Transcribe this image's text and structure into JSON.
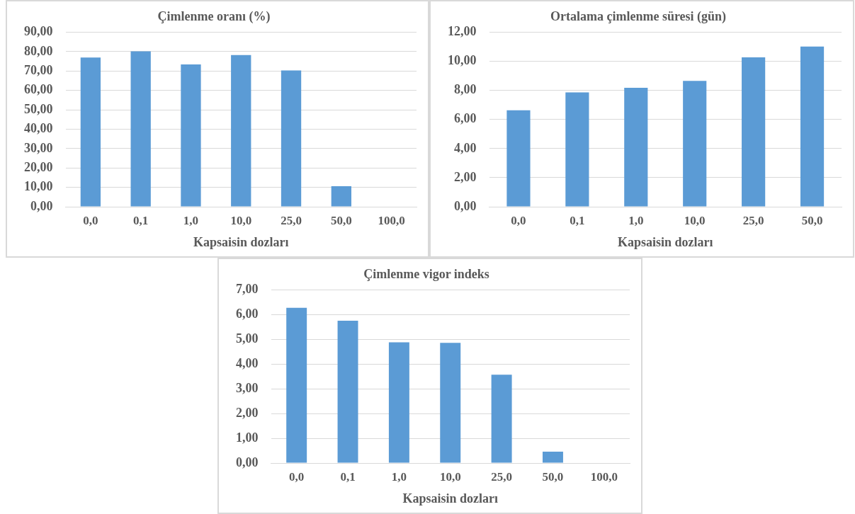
{
  "chart_data": [
    {
      "type": "bar",
      "title": "Çimlenme oranı (%)",
      "xlabel": "Kapsaisin dozları",
      "categories": [
        "0,0",
        "0,1",
        "1,0",
        "10,0",
        "25,0",
        "50,0",
        "100,0"
      ],
      "values": [
        77,
        80.2,
        73.4,
        78.3,
        70.3,
        10.6,
        0
      ],
      "color": "#5b9bd5",
      "ylim": [
        0,
        90
      ],
      "yticks": [
        {
          "value": 0,
          "label": "0,00"
        },
        {
          "value": 10,
          "label": "10,00"
        },
        {
          "value": 20,
          "label": "20,00"
        },
        {
          "value": 30,
          "label": "30,00"
        },
        {
          "value": 40,
          "label": "40,00"
        },
        {
          "value": 50,
          "label": "50,00"
        },
        {
          "value": 60,
          "label": "60,00"
        },
        {
          "value": 70,
          "label": "70,00"
        },
        {
          "value": 80,
          "label": "80,00"
        },
        {
          "value": 90,
          "label": "90,00"
        }
      ],
      "grid": "y",
      "legend": false
    },
    {
      "type": "bar",
      "title": "Ortalama çimlenme süresi (gün)",
      "xlabel": "Kapsaisin dozları",
      "categories": [
        "0,0",
        "0,1",
        "1,0",
        "10,0",
        "25,0",
        "50,0"
      ],
      "values": [
        6.64,
        7.87,
        8.18,
        8.66,
        10.27,
        11.02
      ],
      "color": "#5b9bd5",
      "ylim": [
        0,
        12
      ],
      "yticks": [
        {
          "value": 0,
          "label": "0,00"
        },
        {
          "value": 2,
          "label": "2,00"
        },
        {
          "value": 4,
          "label": "4,00"
        },
        {
          "value": 6,
          "label": "6,00"
        },
        {
          "value": 8,
          "label": "8,00"
        },
        {
          "value": 10,
          "label": "10,00"
        },
        {
          "value": 12,
          "label": "12,00"
        }
      ],
      "grid": "y",
      "legend": false
    },
    {
      "type": "bar",
      "title": "Çimlenme vigor indeks",
      "xlabel": "Kapsaisin dozları",
      "categories": [
        "0,0",
        "0,1",
        "1,0",
        "10,0",
        "25,0",
        "50,0",
        "100,0"
      ],
      "values": [
        6.28,
        5.76,
        4.88,
        4.86,
        3.57,
        0.46,
        0
      ],
      "color": "#5b9bd5",
      "ylim": [
        0,
        7
      ],
      "yticks": [
        {
          "value": 0,
          "label": "0,00"
        },
        {
          "value": 1,
          "label": "1,00"
        },
        {
          "value": 2,
          "label": "2,00"
        },
        {
          "value": 3,
          "label": "3,00"
        },
        {
          "value": 4,
          "label": "4,00"
        },
        {
          "value": 5,
          "label": "5,00"
        },
        {
          "value": 6,
          "label": "6,00"
        },
        {
          "value": 7,
          "label": "7,00"
        }
      ],
      "grid": "y",
      "legend": false
    }
  ]
}
